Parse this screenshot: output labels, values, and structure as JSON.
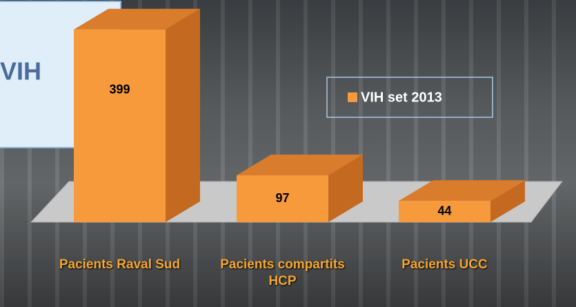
{
  "chart_data": {
    "type": "bar3d",
    "side_label": "VIH",
    "categories": [
      "Pacients Raval Sud",
      "Pacients compartits HCP",
      "Pacients UCC"
    ],
    "series": [
      {
        "name": "VIH set 2013",
        "color": "#f79a3c",
        "values": [
          399,
          97,
          44
        ]
      }
    ]
  }
}
